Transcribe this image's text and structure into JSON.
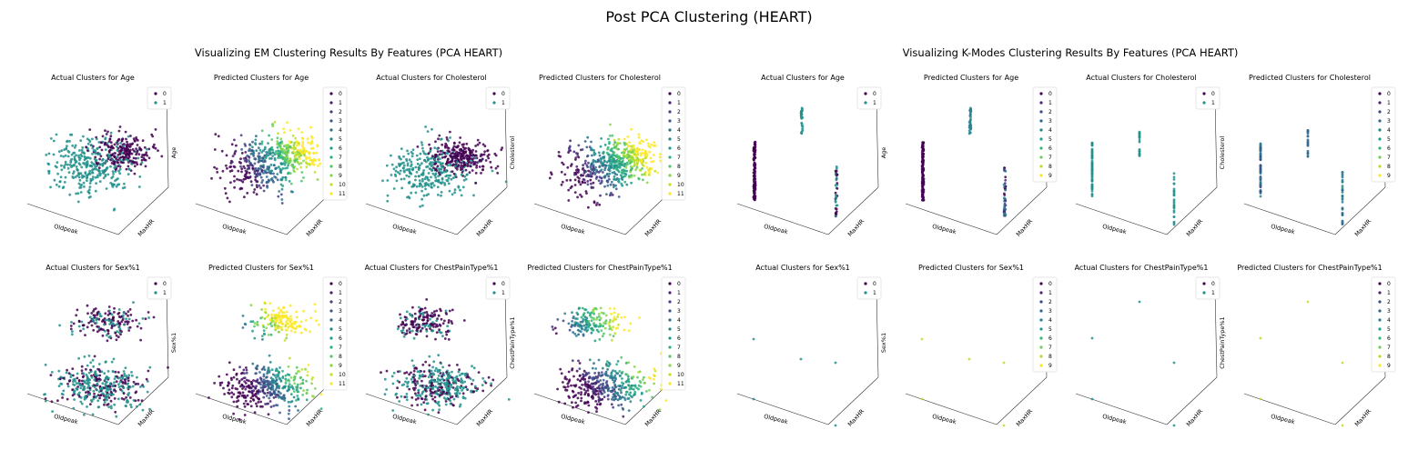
{
  "figure": {
    "title": "Post PCA Clustering (HEART)",
    "sections": [
      {
        "title": "Visualizing EM Clustering Results By Features (PCA HEART)"
      },
      {
        "title": "Visualizing K-Modes Clustering Results By Features (PCA HEART)"
      }
    ]
  },
  "colors": {
    "viridis_2": [
      "#440154",
      "#21918c"
    ],
    "viridis_10": [
      "#440154",
      "#482878",
      "#3e4989",
      "#31688e",
      "#26828e",
      "#1f9e89",
      "#35b779",
      "#6ece58",
      "#b5de2b",
      "#fde725"
    ],
    "viridis_12": [
      "#440154",
      "#482173",
      "#433e85",
      "#38598c",
      "#2d708e",
      "#25858e",
      "#1e9b8a",
      "#2ab07f",
      "#52c569",
      "#86d549",
      "#c2df23",
      "#fde725"
    ]
  },
  "chart_data": [
    {
      "type": "scatter",
      "section": 0,
      "row": 0,
      "col": 0,
      "title": "Actual Clusters for Age",
      "xlabel": "Oldpeak",
      "ylabel": "MaxHR",
      "zlabel": "Age",
      "legend": [
        "0",
        "1"
      ],
      "palette": "viridis_2",
      "pattern": "blob",
      "n_points": 550,
      "legend_position": "top-right"
    },
    {
      "type": "scatter",
      "section": 0,
      "row": 0,
      "col": 1,
      "title": "Predicted Clusters for Age",
      "xlabel": "Oldpeak",
      "ylabel": "MaxHR",
      "zlabel": "Age",
      "legend": [
        "0",
        "1",
        "2",
        "3",
        "4",
        "5",
        "6",
        "7",
        "8",
        "9",
        "10",
        "11"
      ],
      "palette": "viridis_12",
      "pattern": "blob",
      "n_points": 550,
      "legend_position": "top-right"
    },
    {
      "type": "scatter",
      "section": 0,
      "row": 0,
      "col": 2,
      "title": "Actual Clusters for Cholesterol",
      "xlabel": "Oldpeak",
      "ylabel": "MaxHR",
      "zlabel": "Cholesterol",
      "legend": [
        "0",
        "1"
      ],
      "palette": "viridis_2",
      "pattern": "blob_high",
      "n_points": 550,
      "legend_position": "top-right"
    },
    {
      "type": "scatter",
      "section": 0,
      "row": 0,
      "col": 3,
      "title": "Predicted Clusters for Cholesterol",
      "xlabel": "Oldpeak",
      "ylabel": "MaxHR",
      "zlabel": "Cholesterol",
      "legend": [
        "0",
        "1",
        "2",
        "3",
        "4",
        "5",
        "6",
        "7",
        "8",
        "9",
        "10",
        "11"
      ],
      "palette": "viridis_12",
      "pattern": "blob_high",
      "n_points": 550,
      "legend_position": "top-right"
    },
    {
      "type": "scatter",
      "section": 0,
      "row": 1,
      "col": 0,
      "title": "Actual Clusters for Sex%1",
      "xlabel": "Oldpeak",
      "ylabel": "MaxHR",
      "zlabel": "Sex%1",
      "legend": [
        "0",
        "1"
      ],
      "palette": "viridis_2",
      "pattern": "two_blobs",
      "n_points": 550,
      "legend_position": "top-right"
    },
    {
      "type": "scatter",
      "section": 0,
      "row": 1,
      "col": 1,
      "title": "Predicted Clusters for Sex%1",
      "xlabel": "Oldpeak",
      "ylabel": "MaxHR",
      "zlabel": "Sex%1",
      "legend": [
        "0",
        "1",
        "2",
        "3",
        "4",
        "5",
        "6",
        "7",
        "8",
        "9",
        "10",
        "11"
      ],
      "palette": "viridis_12",
      "pattern": "two_blobs",
      "n_points": 550,
      "legend_position": "top-right"
    },
    {
      "type": "scatter",
      "section": 0,
      "row": 1,
      "col": 2,
      "title": "Actual Clusters for ChestPainType%1",
      "xlabel": "Oldpeak",
      "ylabel": "MaxHR",
      "zlabel": "ChestPainType%1",
      "legend": [
        "0",
        "1"
      ],
      "palette": "viridis_2",
      "pattern": "two_blobs_b",
      "n_points": 550,
      "legend_position": "top-right"
    },
    {
      "type": "scatter",
      "section": 0,
      "row": 1,
      "col": 3,
      "title": "Predicted Clusters for ChestPainType%1",
      "xlabel": "Oldpeak",
      "ylabel": "MaxHR",
      "zlabel": "ChestPainType%1",
      "legend": [
        "0",
        "1",
        "2",
        "3",
        "4",
        "5",
        "6",
        "7",
        "8",
        "9",
        "10",
        "11"
      ],
      "palette": "viridis_12",
      "pattern": "two_blobs_b",
      "n_points": 550,
      "legend_position": "top-right"
    },
    {
      "type": "scatter",
      "section": 1,
      "row": 0,
      "col": 0,
      "title": "Actual Clusters for Age",
      "xlabel": "Oldpeak",
      "ylabel": "MaxHR",
      "zlabel": "Age",
      "legend": [
        "0",
        "1"
      ],
      "palette": "viridis_2",
      "pattern": "columns_age",
      "n_points": 200,
      "legend_position": "top-right"
    },
    {
      "type": "scatter",
      "section": 1,
      "row": 0,
      "col": 1,
      "title": "Predicted Clusters for Age",
      "xlabel": "Oldpeak",
      "ylabel": "MaxHR",
      "zlabel": "Age",
      "legend": [
        "0",
        "1",
        "2",
        "3",
        "4",
        "5",
        "6",
        "7",
        "8",
        "9"
      ],
      "palette": "viridis_10",
      "pattern": "columns_age",
      "n_points": 200,
      "legend_position": "top-right"
    },
    {
      "type": "scatter",
      "section": 1,
      "row": 0,
      "col": 2,
      "title": "Actual Clusters for Cholesterol",
      "xlabel": "Oldpeak",
      "ylabel": "MaxHR",
      "zlabel": "Cholesterol",
      "legend": [
        "0",
        "1"
      ],
      "palette": "viridis_2",
      "pattern": "columns_chol",
      "n_points": 120,
      "legend_position": "top-right"
    },
    {
      "type": "scatter",
      "section": 1,
      "row": 0,
      "col": 3,
      "title": "Predicted Clusters for Cholesterol",
      "xlabel": "Oldpeak",
      "ylabel": "MaxHR",
      "zlabel": "Cholesterol",
      "legend": [
        "0",
        "1",
        "2",
        "3",
        "4",
        "5",
        "6",
        "7",
        "8",
        "9"
      ],
      "palette": "viridis_10",
      "pattern": "columns_chol",
      "n_points": 120,
      "legend_position": "top-right"
    },
    {
      "type": "scatter",
      "section": 1,
      "row": 1,
      "col": 0,
      "title": "Actual Clusters for Sex%1",
      "xlabel": "Oldpeak",
      "ylabel": "MaxHR",
      "zlabel": "Sex%1",
      "legend": [
        "0",
        "1"
      ],
      "palette": "viridis_2",
      "pattern": "corners",
      "n_points": 5,
      "legend_position": "top-right"
    },
    {
      "type": "scatter",
      "section": 1,
      "row": 1,
      "col": 1,
      "title": "Predicted Clusters for Sex%1",
      "xlabel": "Oldpeak",
      "ylabel": "MaxHR",
      "zlabel": "Sex%1",
      "legend": [
        "0",
        "1",
        "2",
        "3",
        "4",
        "5",
        "6",
        "7",
        "8",
        "9"
      ],
      "palette": "viridis_10",
      "pattern": "corners_pred",
      "n_points": 5,
      "legend_position": "top-right"
    },
    {
      "type": "scatter",
      "section": 1,
      "row": 1,
      "col": 2,
      "title": "Actual Clusters for ChestPainType%1",
      "xlabel": "Oldpeak",
      "ylabel": "MaxHR",
      "zlabel": "ChestPainType%1",
      "legend": [
        "0",
        "1"
      ],
      "palette": "viridis_2",
      "pattern": "corners_b",
      "n_points": 5,
      "legend_position": "top-right"
    },
    {
      "type": "scatter",
      "section": 1,
      "row": 1,
      "col": 3,
      "title": "Predicted Clusters for ChestPainType%1",
      "xlabel": "Oldpeak",
      "ylabel": "MaxHR",
      "zlabel": "ChestPainType%1",
      "legend": [
        "0",
        "1",
        "2",
        "3",
        "4",
        "5",
        "6",
        "7",
        "8",
        "9"
      ],
      "palette": "viridis_10",
      "pattern": "corners_b_pred",
      "n_points": 5,
      "legend_position": "top-right"
    }
  ]
}
